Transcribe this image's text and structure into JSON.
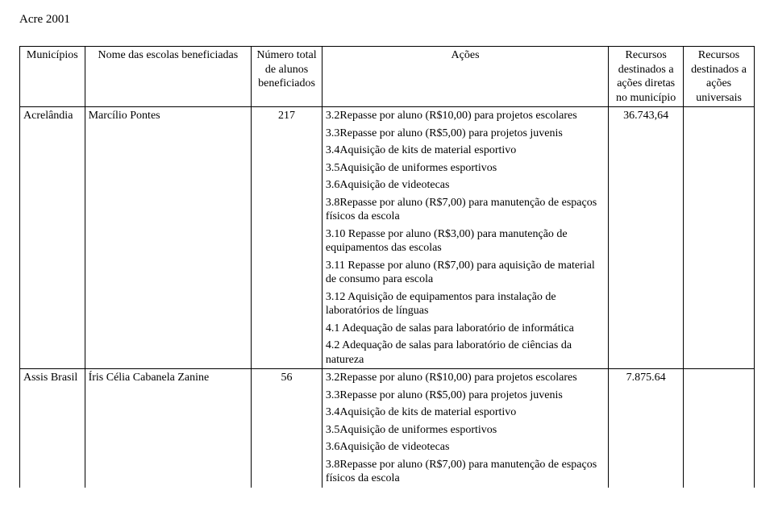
{
  "title": "Acre 2001",
  "columns": {
    "municipio": "Municípios",
    "escola": "Nome das escolas beneficiadas",
    "numero": "Número total\nde alunos\nbeneficiados",
    "acoes": "Ações",
    "rec1": "Recursos\ndestinados a\nações diretas\nno município",
    "rec2": "Recursos\ndestinados a\nações\nuniversais"
  },
  "rows": [
    {
      "municipio": "Acrelândia",
      "escola": "Marcílio Pontes",
      "numero": "217",
      "rec1": "36.743,64",
      "rec2": "",
      "acoes": [
        "3.2Repasse por aluno (R$10,00) para projetos escolares",
        "3.3Repasse por aluno (R$5,00) para projetos juvenis",
        "3.4Aquisição de kits de material esportivo",
        "3.5Aquisição de uniformes esportivos",
        "3.6Aquisição de videotecas",
        "3.8Repasse por aluno (R$7,00) para manutenção de espaços físicos da escola",
        "3.10 Repasse por aluno (R$3,00) para manutenção de equipamentos das escolas",
        "3.11 Repasse por aluno (R$7,00) para aquisição de material de consumo para escola",
        "3.12 Aquisição de equipamentos para instalação de laboratórios de línguas",
        "4.1 Adequação de salas para laboratório de informática",
        "4.2 Adequação de salas para laboratório de ciências da natureza"
      ]
    },
    {
      "municipio": "Assis Brasil",
      "escola": "Íris Célia Cabanela Zanine",
      "numero": "56",
      "rec1": "7.875.64",
      "rec2": "",
      "acoes": [
        "3.2Repasse por aluno (R$10,00) para projetos escolares",
        "3.3Repasse por aluno (R$5,00) para projetos juvenis",
        "3.4Aquisição de kits de material esportivo",
        "3.5Aquisição de uniformes esportivos",
        "3.6Aquisição de videotecas",
        "3.8Repasse por aluno (R$7,00) para manutenção de espaços físicos da escola"
      ]
    }
  ]
}
